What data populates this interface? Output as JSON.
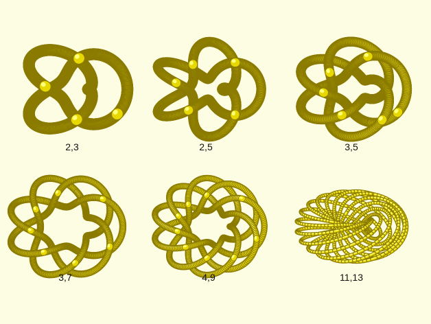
{
  "colors": {
    "background": "#fdfde4",
    "tube_light": "#ffff7a",
    "tube_mid": "#e6d800",
    "tube_dark": "#8a7a00",
    "label": "#111111"
  },
  "knots": [
    {
      "label": "2,3",
      "p": 2,
      "q": 3
    },
    {
      "label": "2,5",
      "p": 2,
      "q": 5
    },
    {
      "label": "3,5",
      "p": 3,
      "q": 5
    },
    {
      "label": "3,7",
      "p": 3,
      "q": 7
    },
    {
      "label": "4,9",
      "p": 4,
      "q": 9
    },
    {
      "label": "11,13",
      "p": 11,
      "q": 13
    }
  ]
}
